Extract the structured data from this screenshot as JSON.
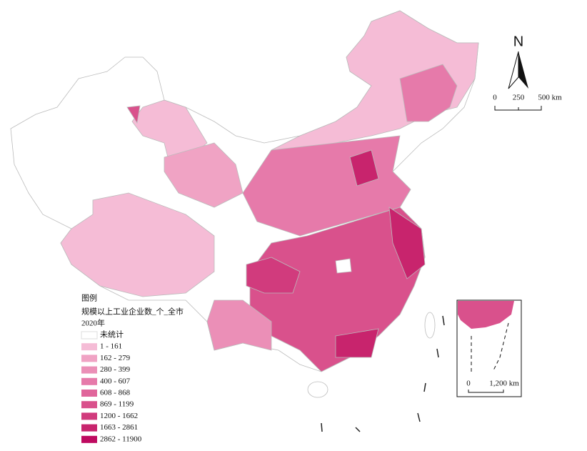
{
  "legend": {
    "heading": "图例",
    "title": "规模以上工业企业数_个_全市",
    "year": "2020年",
    "classes": [
      {
        "label": "未统计",
        "color": "#ffffff"
      },
      {
        "label": "1 - 161",
        "color": "#f5bcd6"
      },
      {
        "label": "162 - 279",
        "color": "#f0a3c4"
      },
      {
        "label": "280 - 399",
        "color": "#eb8fb7"
      },
      {
        "label": "400 - 607",
        "color": "#e67aaa"
      },
      {
        "label": "608 - 868",
        "color": "#e0659b"
      },
      {
        "label": "869 - 1199",
        "color": "#d9518c"
      },
      {
        "label": "1200 - 1662",
        "color": "#d13b7d"
      },
      {
        "label": "1663 - 2861",
        "color": "#c8246d"
      },
      {
        "label": "2862 - 11900",
        "color": "#be0a60"
      }
    ]
  },
  "north_arrow": {
    "label": "N"
  },
  "scale_bar": {
    "labels": [
      "0",
      "250",
      "500 km"
    ]
  },
  "inset": {
    "scale_labels": [
      "0",
      "1,200 km"
    ]
  }
}
